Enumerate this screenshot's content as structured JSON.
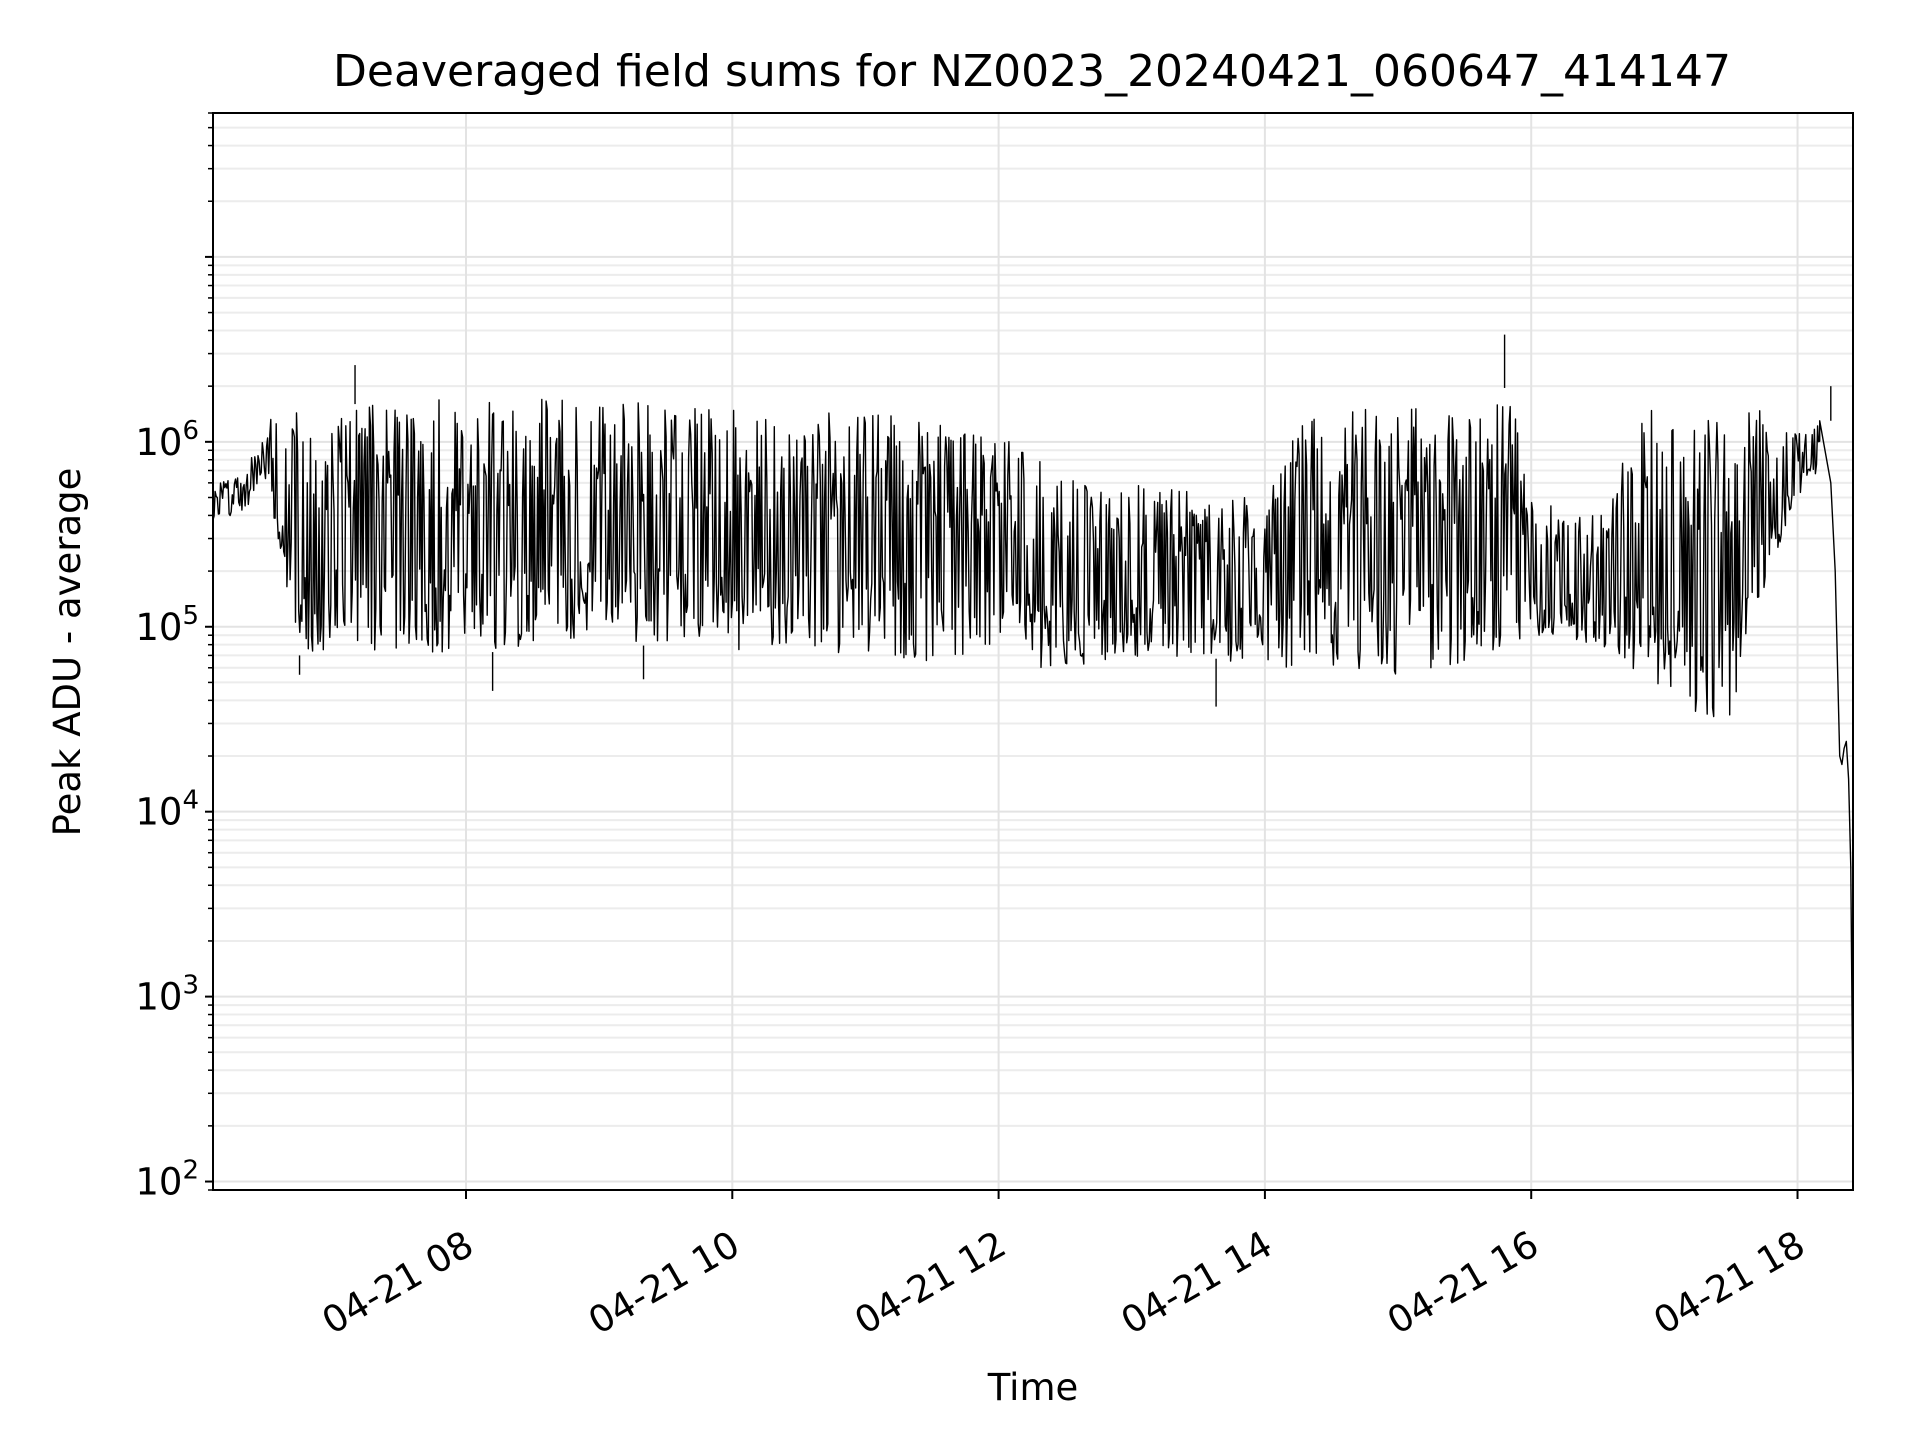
{
  "chart_data": {
    "type": "line",
    "title": "Deaveraged field sums for NZ0023_20240421_060647_414147",
    "xlabel": "Time",
    "ylabel": "Peak ADU - average",
    "yscale": "log",
    "ylim": [
      90,
      60000000
    ],
    "xlim": [
      "2024-04-21 06:06",
      "2024-04-21 18:25"
    ],
    "grid": true,
    "line_color": "#000000",
    "x_ticks": [
      {
        "t": "2024-04-21 08:00",
        "label": "04-21 08"
      },
      {
        "t": "2024-04-21 10:00",
        "label": "04-21 10"
      },
      {
        "t": "2024-04-21 12:00",
        "label": "04-21 12"
      },
      {
        "t": "2024-04-21 14:00",
        "label": "04-21 14"
      },
      {
        "t": "2024-04-21 16:00",
        "label": "04-21 16"
      },
      {
        "t": "2024-04-21 18:00",
        "label": "04-21 18"
      }
    ],
    "y_ticks": [
      {
        "value": 100,
        "base": "10",
        "exp": "2"
      },
      {
        "value": 1000,
        "base": "10",
        "exp": "3"
      },
      {
        "value": 10000,
        "base": "10",
        "exp": "4"
      },
      {
        "value": 100000,
        "base": "10",
        "exp": "5"
      },
      {
        "value": 1000000,
        "base": "10",
        "exp": "6"
      }
    ],
    "series": [
      {
        "envelope": [
          {
            "t": "2024-04-21 06:06",
            "low": 350000,
            "high": 600000
          },
          {
            "t": "2024-04-21 06:20",
            "low": 420000,
            "high": 650000
          },
          {
            "t": "2024-04-21 06:30",
            "low": 600000,
            "high": 1300000
          },
          {
            "t": "2024-04-21 06:45",
            "low": 70000,
            "high": 1600000
          },
          {
            "t": "2024-04-21 07:15",
            "low": 75000,
            "high": 1600000
          },
          {
            "t": "2024-04-21 07:45",
            "low": 70000,
            "high": 1700000
          },
          {
            "t": "2024-04-21 08:30",
            "low": 75000,
            "high": 1700000
          },
          {
            "t": "2024-04-21 09:30",
            "low": 80000,
            "high": 1650000
          },
          {
            "t": "2024-04-21 10:00",
            "low": 75000,
            "high": 1550000
          },
          {
            "t": "2024-04-21 10:45",
            "low": 70000,
            "high": 1450000
          },
          {
            "t": "2024-04-21 11:30",
            "low": 65000,
            "high": 1400000
          },
          {
            "t": "2024-04-21 12:00",
            "low": 60000,
            "high": 1100000
          },
          {
            "t": "2024-04-21 12:30",
            "low": 60000,
            "high": 700000
          },
          {
            "t": "2024-04-21 13:00",
            "low": 65000,
            "high": 600000
          },
          {
            "t": "2024-04-21 13:30",
            "low": 70000,
            "high": 550000
          },
          {
            "t": "2024-04-21 14:00",
            "low": 60000,
            "high": 500000
          },
          {
            "t": "2024-04-21 14:20",
            "low": 60000,
            "high": 1550000
          },
          {
            "t": "2024-04-21 14:35",
            "low": 55000,
            "high": 1550000
          },
          {
            "t": "2024-04-21 15:00",
            "low": 55000,
            "high": 1500000
          },
          {
            "t": "2024-04-21 15:30",
            "low": 60000,
            "high": 1600000
          },
          {
            "t": "2024-04-21 15:50",
            "low": 80000,
            "high": 2000000
          },
          {
            "t": "2024-04-21 16:00",
            "low": 90000,
            "high": 500000
          },
          {
            "t": "2024-04-21 16:30",
            "low": 80000,
            "high": 450000
          },
          {
            "t": "2024-04-21 16:50",
            "low": 50000,
            "high": 1500000
          },
          {
            "t": "2024-04-21 17:10",
            "low": 30000,
            "high": 1400000
          },
          {
            "t": "2024-04-21 17:30",
            "low": 30000,
            "high": 1400000
          },
          {
            "t": "2024-04-21 17:45",
            "low": 150000,
            "high": 1500000
          },
          {
            "t": "2024-04-21 18:00",
            "low": 500000,
            "high": 1100000
          },
          {
            "t": "2024-04-21 18:10",
            "low": 700000,
            "high": 1300000
          }
        ],
        "tail": [
          {
            "t": "2024-04-21 18:10",
            "v": 1300000
          },
          {
            "t": "2024-04-21 18:15",
            "v": 600000
          },
          {
            "t": "2024-04-21 18:17",
            "v": 200000
          },
          {
            "t": "2024-04-21 18:19",
            "v": 20000
          },
          {
            "t": "2024-04-21 18:20",
            "v": 18000
          },
          {
            "t": "2024-04-21 18:21",
            "v": 22000
          },
          {
            "t": "2024-04-21 18:22",
            "v": 24000
          },
          {
            "t": "2024-04-21 18:23",
            "v": 15000
          },
          {
            "t": "2024-04-21 18:24",
            "v": 5000
          },
          {
            "t": "2024-04-21 18:25",
            "v": 200
          }
        ],
        "spikes": [
          {
            "t": "2024-04-21 06:45",
            "v": 55000
          },
          {
            "t": "2024-04-21 07:10",
            "v": 2600000
          },
          {
            "t": "2024-04-21 08:12",
            "v": 45000
          },
          {
            "t": "2024-04-21 09:20",
            "v": 52000
          },
          {
            "t": "2024-04-21 13:38",
            "v": 37000
          },
          {
            "t": "2024-04-21 15:48",
            "v": 3800000
          },
          {
            "t": "2024-04-21 18:15",
            "v": 2000000
          }
        ]
      }
    ]
  }
}
